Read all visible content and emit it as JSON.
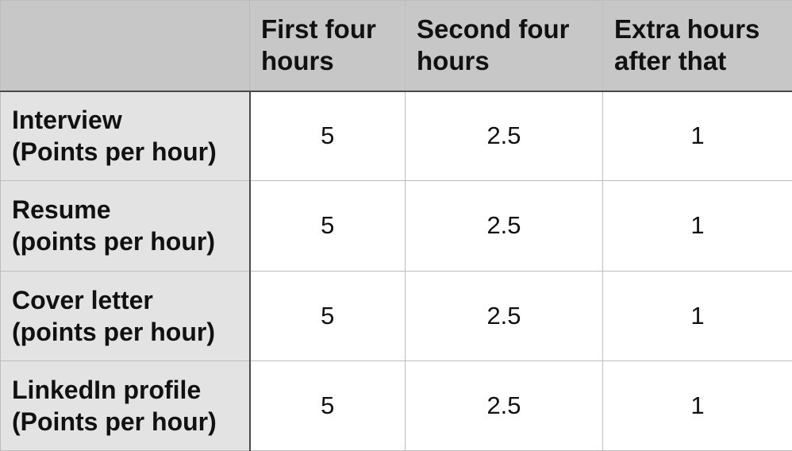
{
  "table": {
    "columns": [
      "",
      "First four hours",
      "Second four hours",
      "Extra hours after that"
    ],
    "column_lines": [
      [],
      [
        "First four",
        "hours"
      ],
      [
        "Second four",
        "hours"
      ],
      [
        "Extra hours",
        "after that"
      ]
    ],
    "rows": [
      {
        "label_lines": [
          "Interview",
          "(Points per hour)"
        ],
        "values": [
          "5",
          "2.5",
          "1"
        ]
      },
      {
        "label_lines": [
          "Resume",
          "(points per hour)"
        ],
        "values": [
          "5",
          "2.5",
          "1"
        ]
      },
      {
        "label_lines": [
          "Cover letter",
          "(points per hour)"
        ],
        "values": [
          "5",
          "2.5",
          "1"
        ]
      },
      {
        "label_lines": [
          "LinkedIn profile",
          "(Points per hour)"
        ],
        "values": [
          "5",
          "2.5",
          "1"
        ]
      }
    ]
  },
  "colors": {
    "header_bg": "#c7c7c7",
    "row_header_bg": "#e3e3e3",
    "cell_bg": "#ffffff",
    "grid_line": "#bdbdbd",
    "separator_line": "#4a4a4a"
  }
}
